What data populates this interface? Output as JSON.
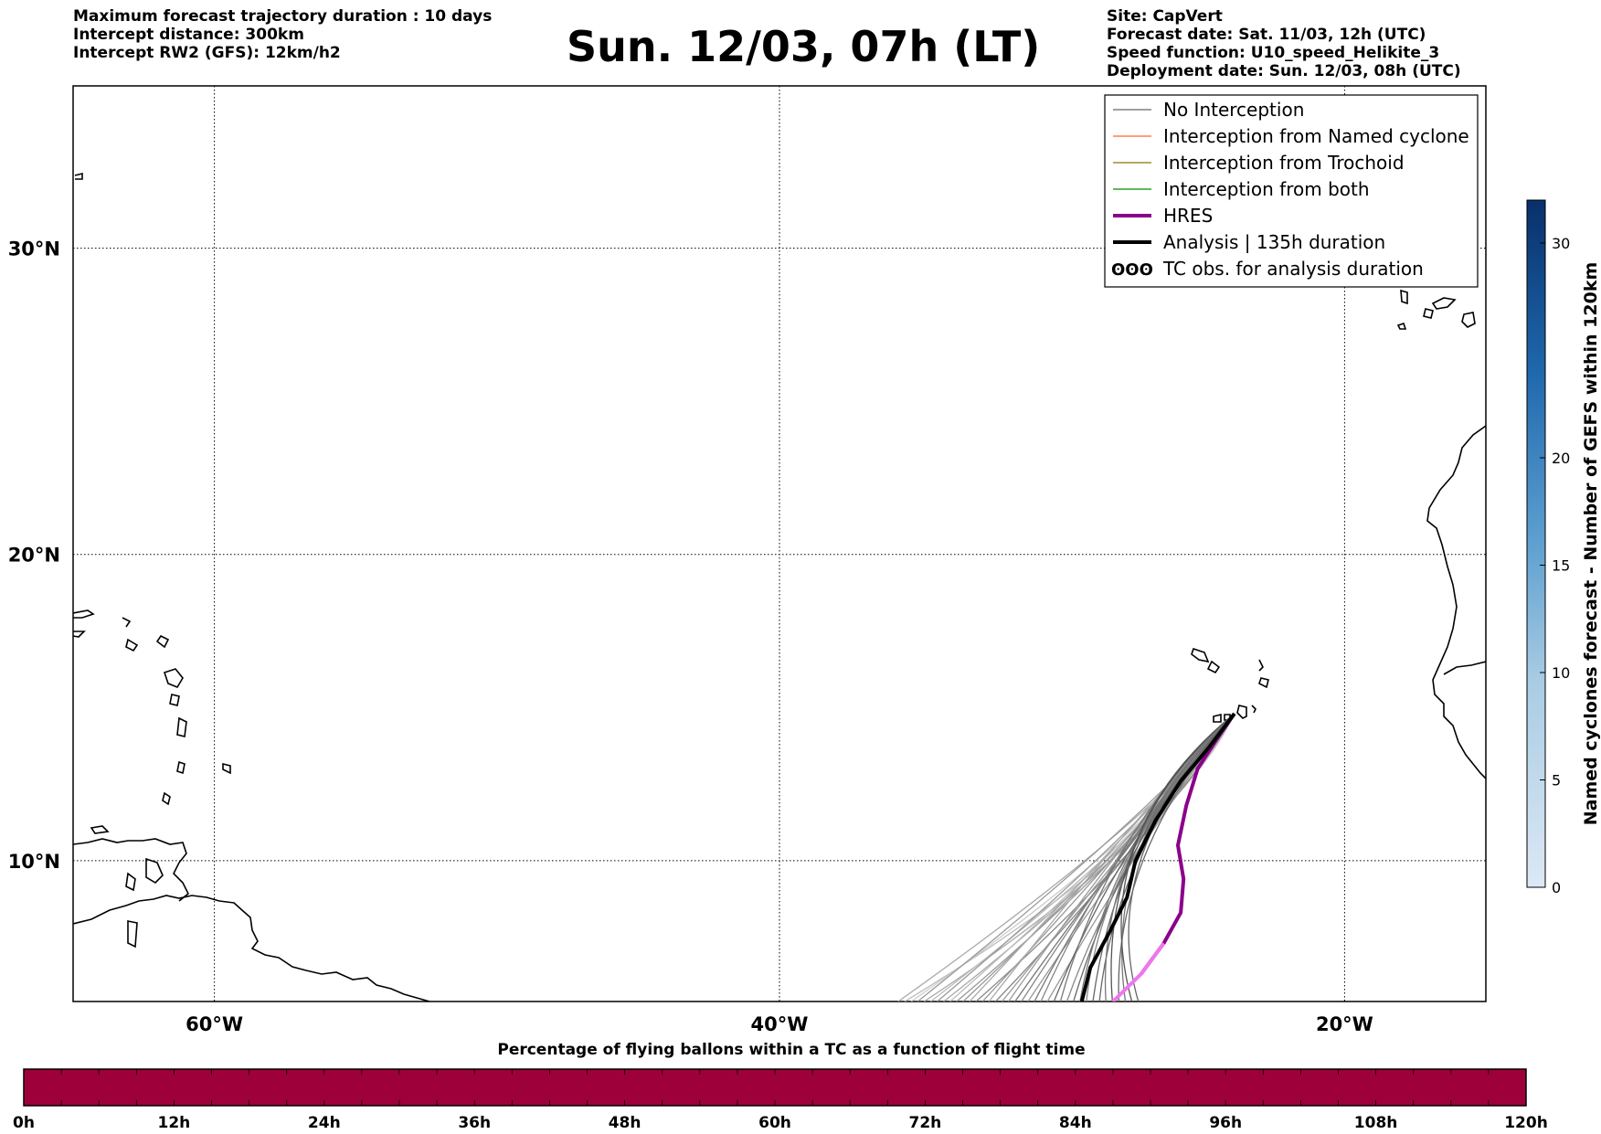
{
  "header_left": [
    "Maximum forecast trajectory duration : 10 days",
    "Intercept distance: 300km",
    "Intercept RW2 (GFS):  12km/h2"
  ],
  "title": "Sun. 12/03, 07h (LT)",
  "header_right": [
    "Site: CapVert",
    "Forecast date: Sat. 11/03, 12h (UTC)",
    "Speed function: U10_speed_Helikite_3",
    "Deployment date: Sun. 12/03, 08h (UTC)"
  ],
  "map": {
    "lat_labels": [
      "30°N",
      "20°N",
      "10°N"
    ],
    "lon_labels": [
      "60°W",
      "40°W",
      "20°W"
    ],
    "lat_values": [
      30,
      20,
      10
    ],
    "lon_values": [
      -60,
      -40,
      -20
    ],
    "extent": {
      "lon_min": -65,
      "lon_max": -15,
      "lat_min": 5.4,
      "lat_max": 35.3
    },
    "grid": true
  },
  "legend": {
    "items": [
      {
        "label": "No Interception",
        "color": "#808080",
        "style": "thin"
      },
      {
        "label": "Interception from Named cyclone",
        "color": "#ff7f50",
        "style": "thin"
      },
      {
        "label": "Interception from Trochoid",
        "color": "#9b8d2d",
        "style": "thin"
      },
      {
        "label": "Interception from both",
        "color": "#2ca02c",
        "style": "thin"
      },
      {
        "label": "HRES",
        "color": "#8b008b",
        "style": "thick"
      },
      {
        "label": "Analysis | 135h duration",
        "color": "#000000",
        "style": "thick"
      },
      {
        "label": "TC obs. for analysis duration",
        "color": "#000000",
        "style": "symbol"
      }
    ]
  },
  "colorbar": {
    "label": "Named cyclones forecast - Number of GEFS within 120km",
    "ticks": [
      "0",
      "5",
      "10",
      "15",
      "20",
      "30"
    ],
    "tick_values": [
      0,
      5,
      10,
      15,
      20,
      30
    ],
    "min": 0,
    "max": 32,
    "colors": [
      "#dce8f5",
      "#c6dbef",
      "#9ecae1",
      "#6baed6",
      "#4292c6",
      "#2171b5",
      "#08519c",
      "#08306b"
    ]
  },
  "percent_bar": {
    "title": "Percentage of flying ballons within a TC as a function of flight time",
    "ticks": [
      "0h",
      "12h",
      "24h",
      "36h",
      "48h",
      "60h",
      "72h",
      "84h",
      "96h",
      "108h",
      "120h"
    ],
    "color": "#9e003a"
  },
  "chart_data": {
    "type": "line",
    "title": "Sun. 12/03, 07h (LT)",
    "series": [
      {
        "name": "Analysis | 135h duration",
        "lon": [
          -23.9,
          -24.8,
          -25.8,
          -26.7,
          -27.4,
          -27.7,
          -28.3,
          -29.0,
          -29.3
        ],
        "lat": [
          14.8,
          13.7,
          12.6,
          11.3,
          10.0,
          8.8,
          7.7,
          6.5,
          5.4
        ]
      },
      {
        "name": "HRES",
        "lon": [
          -23.9,
          -24.5,
          -25.2,
          -25.6,
          -25.9,
          -25.7,
          -25.8,
          -26.4,
          -27.2,
          -28.2
        ],
        "lat": [
          14.8,
          14.0,
          13.0,
          11.8,
          10.5,
          9.4,
          8.3,
          7.3,
          6.3,
          5.4
        ]
      }
    ]
  }
}
